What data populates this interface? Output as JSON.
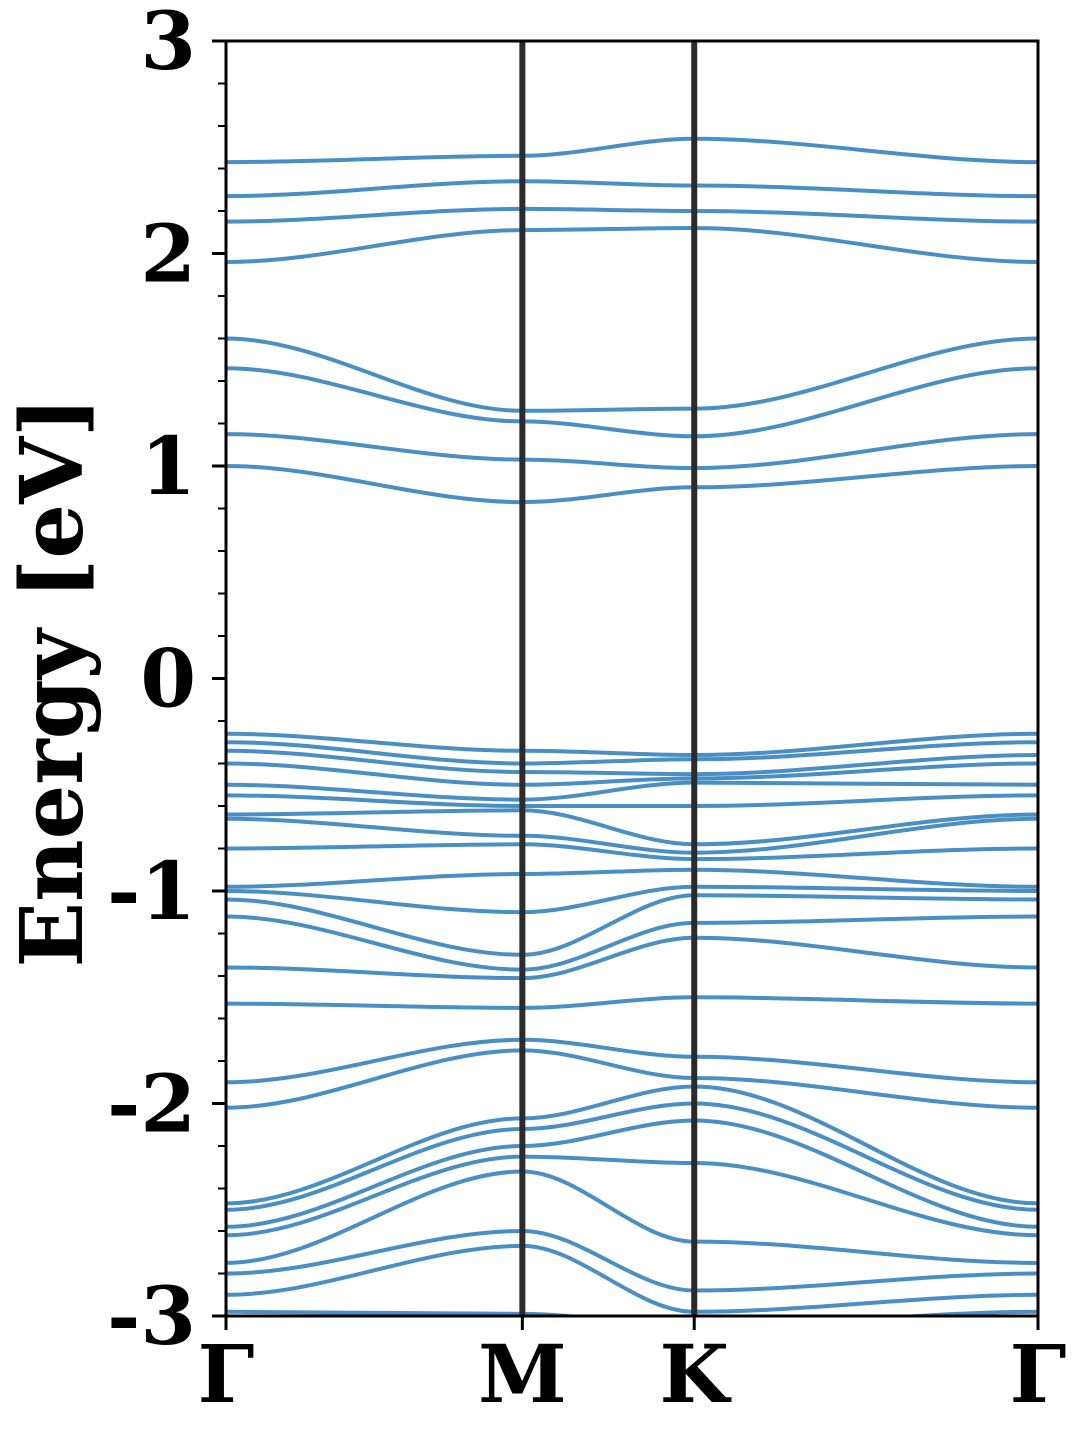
{
  "chart_data": {
    "type": "line",
    "ylabel": "Energy [eV]",
    "xlabel": "",
    "ylim": [
      -3,
      3
    ],
    "yticks": [
      -3,
      -2,
      -1,
      0,
      1,
      2,
      3
    ],
    "yticks_labels": [
      "-3",
      "-2",
      "-1",
      "0",
      "1",
      "2",
      "3"
    ],
    "grid": false,
    "legend": "none",
    "x_path": [
      0,
      1,
      1.58,
      2.74
    ],
    "kpoints": [
      {
        "label": "Γ",
        "x": 0
      },
      {
        "label": "M",
        "x": 1
      },
      {
        "label": "K",
        "x": 1.58
      },
      {
        "label": "Γ",
        "x": 2.74
      }
    ],
    "band_color": "#3a86bf",
    "divider_color": "#2b2b2b",
    "bands": [
      {
        "values": [
          2.43,
          2.46,
          2.54,
          2.43
        ]
      },
      {
        "values": [
          2.27,
          2.34,
          2.32,
          2.27
        ]
      },
      {
        "values": [
          2.15,
          2.21,
          2.2,
          2.15
        ]
      },
      {
        "values": [
          1.96,
          2.11,
          2.12,
          1.96
        ]
      },
      {
        "values": [
          1.6,
          1.26,
          1.27,
          1.6
        ]
      },
      {
        "values": [
          1.46,
          1.21,
          1.14,
          1.46
        ]
      },
      {
        "values": [
          1.15,
          1.03,
          0.99,
          1.15
        ]
      },
      {
        "values": [
          1.0,
          0.83,
          0.9,
          1.0
        ]
      },
      {
        "values": [
          -0.26,
          -0.34,
          -0.36,
          -0.26
        ]
      },
      {
        "values": [
          -0.3,
          -0.4,
          -0.38,
          -0.3
        ]
      },
      {
        "values": [
          -0.34,
          -0.44,
          -0.45,
          -0.36
        ]
      },
      {
        "values": [
          -0.4,
          -0.5,
          -0.47,
          -0.4
        ]
      },
      {
        "values": [
          -0.5,
          -0.57,
          -0.49,
          -0.5
        ]
      },
      {
        "values": [
          -0.55,
          -0.6,
          -0.6,
          -0.55
        ]
      },
      {
        "values": [
          -0.64,
          -0.62,
          -0.78,
          -0.64
        ]
      },
      {
        "values": [
          -0.66,
          -0.74,
          -0.82,
          -0.66
        ]
      },
      {
        "values": [
          -0.8,
          -0.78,
          -0.85,
          -0.8
        ]
      },
      {
        "values": [
          -0.98,
          -0.92,
          -0.9,
          -0.98
        ]
      },
      {
        "values": [
          -1.0,
          -1.1,
          -0.98,
          -1.0
        ]
      },
      {
        "values": [
          -1.04,
          -1.3,
          -1.02,
          -1.04
        ]
      },
      {
        "values": [
          -1.12,
          -1.37,
          -1.15,
          -1.12
        ]
      },
      {
        "values": [
          -1.36,
          -1.41,
          -1.22,
          -1.36
        ]
      },
      {
        "values": [
          -1.53,
          -1.55,
          -1.5,
          -1.53
        ]
      },
      {
        "values": [
          -1.9,
          -1.7,
          -1.78,
          -1.9
        ]
      },
      {
        "values": [
          -2.02,
          -1.75,
          -1.88,
          -2.02
        ]
      },
      {
        "values": [
          -2.47,
          -2.07,
          -1.92,
          -2.47
        ]
      },
      {
        "values": [
          -2.5,
          -2.12,
          -2.0,
          -2.5
        ]
      },
      {
        "values": [
          -2.58,
          -2.2,
          -2.08,
          -2.58
        ]
      },
      {
        "values": [
          -2.62,
          -2.25,
          -2.28,
          -2.62
        ]
      },
      {
        "values": [
          -2.75,
          -2.32,
          -2.65,
          -2.75
        ]
      },
      {
        "values": [
          -2.8,
          -2.6,
          -2.88,
          -2.8
        ]
      },
      {
        "values": [
          -2.9,
          -2.67,
          -2.98,
          -2.9
        ]
      },
      {
        "values": [
          -2.98,
          -2.99,
          -3.05,
          -2.98
        ]
      }
    ]
  }
}
